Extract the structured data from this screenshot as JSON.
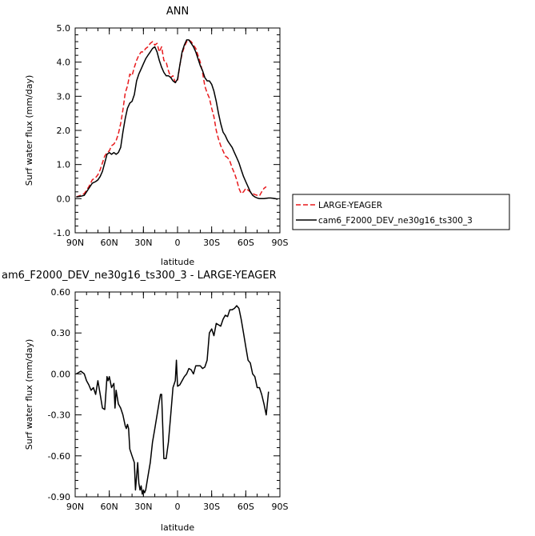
{
  "chart_data": [
    {
      "type": "line",
      "title": "ANN",
      "xlabel": "latitude",
      "ylabel": "Surf water flux (mm/day)",
      "xlim": [
        90,
        -90
      ],
      "ylim": [
        -1.0,
        5.0
      ],
      "xticks": [
        "90N",
        "60N",
        "30N",
        "0",
        "30S",
        "60S",
        "90S"
      ],
      "xtick_values": [
        90,
        60,
        30,
        0,
        -30,
        -60,
        -90
      ],
      "yticks": [
        "-1.0",
        "0.0",
        "1.0",
        "2.0",
        "3.0",
        "4.0",
        "5.0"
      ],
      "ytick_values": [
        -1,
        0,
        1,
        2,
        3,
        4,
        5
      ],
      "legend_position": "right",
      "series": [
        {
          "name": "LARGE-YEAGER",
          "color": "#e8191c",
          "dash": "dashed",
          "x": [
            89,
            85,
            82,
            78,
            75,
            72,
            70,
            68,
            66,
            64,
            62,
            60,
            58,
            56,
            54,
            52,
            50,
            48,
            46,
            44,
            42,
            40,
            38,
            36,
            34,
            32,
            30,
            28,
            26,
            24,
            22,
            20,
            18,
            16,
            14,
            12,
            10,
            8,
            6,
            4,
            2,
            0,
            -2,
            -4,
            -6,
            -8,
            -10,
            -12,
            -14,
            -16,
            -18,
            -20,
            -22,
            -24,
            -26,
            -28,
            -30,
            -32,
            -34,
            -36,
            -38,
            -40,
            -42,
            -44,
            -46,
            -48,
            -50,
            -52,
            -54,
            -56,
            -58,
            -60,
            -62,
            -64,
            -66,
            -68,
            -70,
            -72,
            -74,
            -76,
            -78
          ],
          "values": [
            0.05,
            0.1,
            0.15,
            0.35,
            0.55,
            0.62,
            0.7,
            0.85,
            1.05,
            1.25,
            1.35,
            1.4,
            1.55,
            1.6,
            1.7,
            1.9,
            2.2,
            2.6,
            3.1,
            3.3,
            3.65,
            3.6,
            3.85,
            4.05,
            4.2,
            4.3,
            4.3,
            4.4,
            4.45,
            4.55,
            4.6,
            4.5,
            4.55,
            4.3,
            4.45,
            4.05,
            4.0,
            3.75,
            3.55,
            3.6,
            3.4,
            3.45,
            3.9,
            4.25,
            4.45,
            4.6,
            4.65,
            4.6,
            4.5,
            4.4,
            4.2,
            4.0,
            3.7,
            3.3,
            3.1,
            2.95,
            2.65,
            2.4,
            2.0,
            1.75,
            1.55,
            1.4,
            1.25,
            1.2,
            1.1,
            0.9,
            0.75,
            0.55,
            0.3,
            0.15,
            0.2,
            0.3,
            0.25,
            0.2,
            0.15,
            0.12,
            0.1,
            0.08,
            0.2,
            0.3,
            0.35
          ]
        },
        {
          "name": "cam6_F2000_DEV_ne30g16_ts300_3",
          "color": "#000000",
          "dash": "solid",
          "x": [
            89,
            85,
            82,
            78,
            75,
            72,
            70,
            68,
            66,
            64,
            62,
            60,
            58,
            56,
            54,
            52,
            50,
            48,
            46,
            44,
            42,
            40,
            38,
            36,
            34,
            32,
            30,
            28,
            26,
            24,
            22,
            20,
            18,
            16,
            14,
            12,
            10,
            8,
            6,
            4,
            2,
            0,
            -2,
            -4,
            -6,
            -8,
            -10,
            -12,
            -14,
            -16,
            -18,
            -20,
            -22,
            -24,
            -26,
            -28,
            -30,
            -32,
            -34,
            -36,
            -38,
            -40,
            -42,
            -44,
            -46,
            -48,
            -50,
            -52,
            -54,
            -56,
            -58,
            -60,
            -62,
            -64,
            -66,
            -68,
            -70,
            -72,
            -74,
            -76,
            -78,
            -80,
            -82,
            -84,
            -86,
            -88
          ],
          "values": [
            0.05,
            0.07,
            0.1,
            0.3,
            0.45,
            0.5,
            0.55,
            0.65,
            0.8,
            1.05,
            1.3,
            1.35,
            1.3,
            1.35,
            1.3,
            1.35,
            1.5,
            1.95,
            2.35,
            2.65,
            2.8,
            2.85,
            3.05,
            3.45,
            3.65,
            3.8,
            3.95,
            4.1,
            4.2,
            4.3,
            4.4,
            4.45,
            4.3,
            4.05,
            3.85,
            3.7,
            3.6,
            3.6,
            3.55,
            3.45,
            3.4,
            3.5,
            3.9,
            4.3,
            4.5,
            4.65,
            4.65,
            4.55,
            4.45,
            4.3,
            4.1,
            3.9,
            3.75,
            3.55,
            3.45,
            3.45,
            3.35,
            3.15,
            2.85,
            2.5,
            2.2,
            1.95,
            1.85,
            1.7,
            1.6,
            1.5,
            1.35,
            1.2,
            1.05,
            0.85,
            0.65,
            0.5,
            0.35,
            0.2,
            0.1,
            0.05,
            0.02,
            0.0,
            0.0,
            0.0,
            0.01,
            0.02,
            0.02,
            0.01,
            0.0,
            -0.02
          ]
        }
      ]
    },
    {
      "type": "line",
      "title": "am6_F2000_DEV_ne30g16_ts300_3 - LARGE-YEAGER",
      "xlabel": "latitude",
      "ylabel": "Surf water flux (mm/day)",
      "xlim": [
        90,
        -90
      ],
      "ylim": [
        -0.9,
        0.6
      ],
      "xticks": [
        "90N",
        "60N",
        "30N",
        "0",
        "30S",
        "60S",
        "90S"
      ],
      "xtick_values": [
        90,
        60,
        30,
        0,
        -30,
        -60,
        -90
      ],
      "yticks": [
        "-0.90",
        "-0.60",
        "-0.30",
        "0.00",
        "0.30",
        "0.60"
      ],
      "ytick_values": [
        -0.9,
        -0.6,
        -0.3,
        0.0,
        0.3,
        0.6
      ],
      "series": [
        {
          "color": "#000000",
          "x": [
            89,
            85,
            82,
            80,
            78,
            76,
            74,
            72,
            70,
            68,
            66,
            64,
            62,
            61,
            60,
            58,
            56,
            55,
            54,
            52,
            50,
            48,
            46,
            45,
            44,
            43,
            42,
            40,
            38,
            37,
            36,
            35,
            34,
            33,
            32,
            31,
            30,
            29,
            28,
            26,
            24,
            22,
            20,
            18,
            17,
            16,
            15,
            14,
            12,
            10,
            8,
            6,
            4,
            2,
            1,
            0,
            -2,
            -4,
            -6,
            -8,
            -10,
            -12,
            -14,
            -16,
            -18,
            -20,
            -22,
            -24,
            -26,
            -28,
            -30,
            -32,
            -34,
            -36,
            -38,
            -40,
            -42,
            -44,
            -46,
            -48,
            -50,
            -52,
            -54,
            -56,
            -58,
            -60,
            -62,
            -64,
            -66,
            -68,
            -70,
            -72,
            -74,
            -76,
            -78,
            -80
          ],
          "values": [
            0.0,
            0.02,
            0.0,
            -0.05,
            -0.08,
            -0.12,
            -0.1,
            -0.15,
            -0.05,
            -0.15,
            -0.25,
            -0.26,
            -0.02,
            -0.05,
            -0.02,
            -0.1,
            -0.07,
            -0.25,
            -0.12,
            -0.22,
            -0.25,
            -0.3,
            -0.38,
            -0.4,
            -0.37,
            -0.4,
            -0.55,
            -0.6,
            -0.65,
            -0.85,
            -0.75,
            -0.65,
            -0.8,
            -0.85,
            -0.82,
            -0.88,
            -0.85,
            -0.87,
            -0.85,
            -0.75,
            -0.65,
            -0.5,
            -0.4,
            -0.3,
            -0.25,
            -0.2,
            -0.15,
            -0.15,
            -0.62,
            -0.62,
            -0.5,
            -0.3,
            -0.1,
            -0.05,
            0.1,
            -0.09,
            -0.08,
            -0.05,
            -0.02,
            0.0,
            0.04,
            0.03,
            0.0,
            0.06,
            0.06,
            0.06,
            0.04,
            0.05,
            0.1,
            0.3,
            0.33,
            0.28,
            0.37,
            0.36,
            0.35,
            0.4,
            0.43,
            0.42,
            0.47,
            0.47,
            0.48,
            0.5,
            0.48,
            0.4,
            0.3,
            0.2,
            0.1,
            0.08,
            0.0,
            -0.02,
            -0.1,
            -0.1,
            -0.15,
            -0.22,
            -0.3,
            -0.13
          ]
        }
      ]
    }
  ]
}
